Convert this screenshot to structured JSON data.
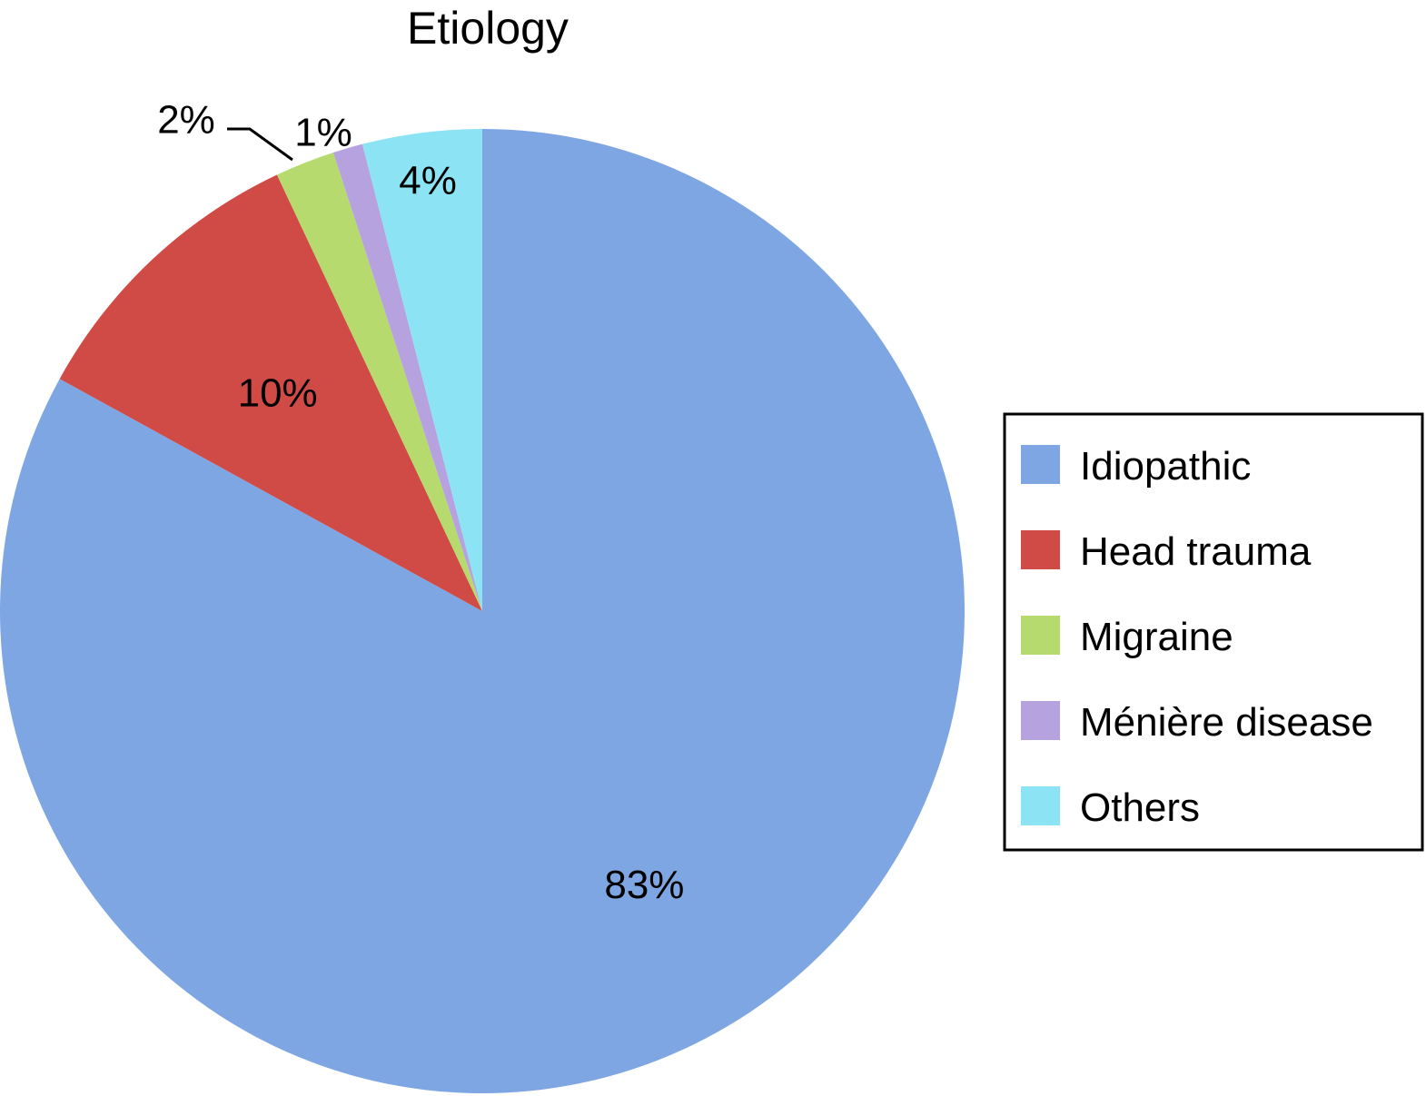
{
  "chart_data": {
    "type": "pie",
    "title": "Etiology",
    "categories": [
      "Idiopathic",
      "Head trauma",
      "Migraine",
      "Ménière disease",
      "Others"
    ],
    "values": [
      83,
      10,
      2,
      1,
      4
    ],
    "labels": [
      "83%",
      "10%",
      "2%",
      "1%",
      "4%"
    ],
    "colors": [
      "#7ea6e3",
      "#d04a46",
      "#b6da6e",
      "#b6a2df",
      "#8ce3f4"
    ],
    "start_angle": "12 o'clock",
    "direction": "clockwise",
    "legend_position": "right"
  }
}
